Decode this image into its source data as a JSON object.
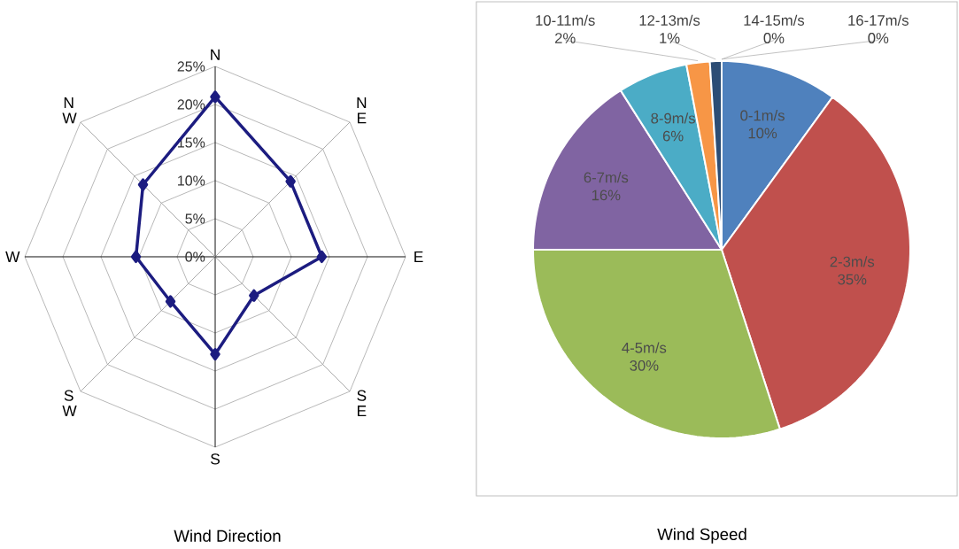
{
  "chart_data": [
    {
      "type": "radar",
      "title": "Wind Direction",
      "categories": [
        "N",
        "N E",
        "E",
        "S E",
        "S",
        "S W",
        "W",
        "N W"
      ],
      "series": [
        {
          "color": "#1c1c80",
          "values": [
            21,
            14,
            14,
            7.2,
            12.8,
            8.3,
            10.4,
            13.4
          ]
        }
      ],
      "ylim": [
        0,
        25
      ],
      "yticks": [
        {
          "value": 0,
          "label": "0%"
        },
        {
          "value": 5,
          "label": "5%"
        },
        {
          "value": 10,
          "label": "10%"
        },
        {
          "value": 15,
          "label": "15%"
        },
        {
          "value": 20,
          "label": "20%"
        },
        {
          "value": 25,
          "label": "25%"
        }
      ],
      "grid": true,
      "marker": "diamond",
      "line_style": "solid"
    },
    {
      "type": "pie",
      "title": "Wind Speed",
      "categories": [
        "0-1m/s",
        "2-3m/s",
        "4-5m/s",
        "6-7m/s",
        "8-9m/s",
        "10-11m/s",
        "12-13m/s",
        "14-15m/s",
        "16-17m/s"
      ],
      "values": [
        10,
        35,
        30,
        16,
        6,
        2,
        1,
        0,
        0
      ],
      "value_labels": [
        "10%",
        "35%",
        "30%",
        "16%",
        "6%",
        "2%",
        "1%",
        "0%",
        "0%"
      ],
      "colors": [
        "#4f81bd",
        "#c0504d",
        "#9bbb59",
        "#8064a2",
        "#4bacc6",
        "#f79646",
        "#2c4d75",
        "#772c2a",
        "#5f7530"
      ]
    }
  ]
}
